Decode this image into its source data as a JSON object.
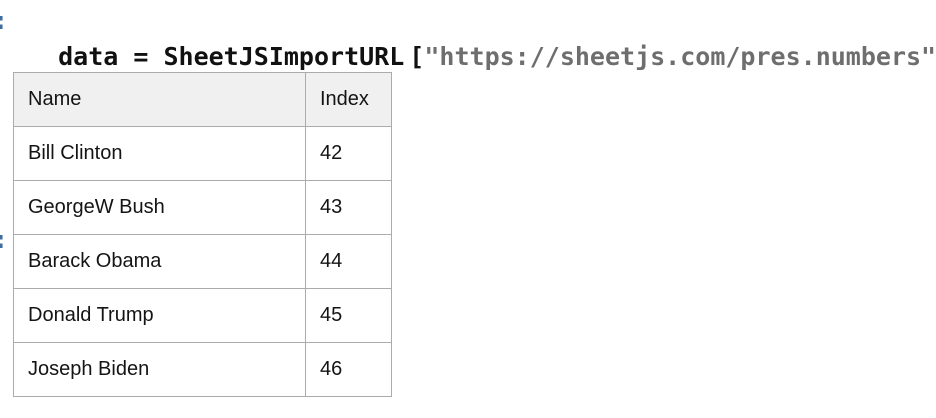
{
  "notebook": {
    "in_prompt": ":",
    "out_prompt": ":",
    "code": {
      "assignment": "data = SheetJSImportURL",
      "open_bracket": "[",
      "url_string": "\"https://sheetjs.com/pres.numbers\"",
      "close_bracket": "]"
    }
  },
  "table": {
    "headers": [
      {
        "label": "Name"
      },
      {
        "label": "Index"
      }
    ],
    "rows": [
      {
        "name": "Bill Clinton",
        "index": "42"
      },
      {
        "name": "GeorgeW Bush",
        "index": "43"
      },
      {
        "name": "Barack Obama",
        "index": "44"
      },
      {
        "name": "Donald Trump",
        "index": "45"
      },
      {
        "name": "Joseph Biden",
        "index": "46"
      }
    ]
  },
  "colors": {
    "code_text": "#111111",
    "string_text": "#6e6e6e",
    "prompt_blue": "#3a6ea8",
    "header_bg": "#f0f0f0",
    "table_border": "#ababab",
    "background": "#ffffff"
  }
}
